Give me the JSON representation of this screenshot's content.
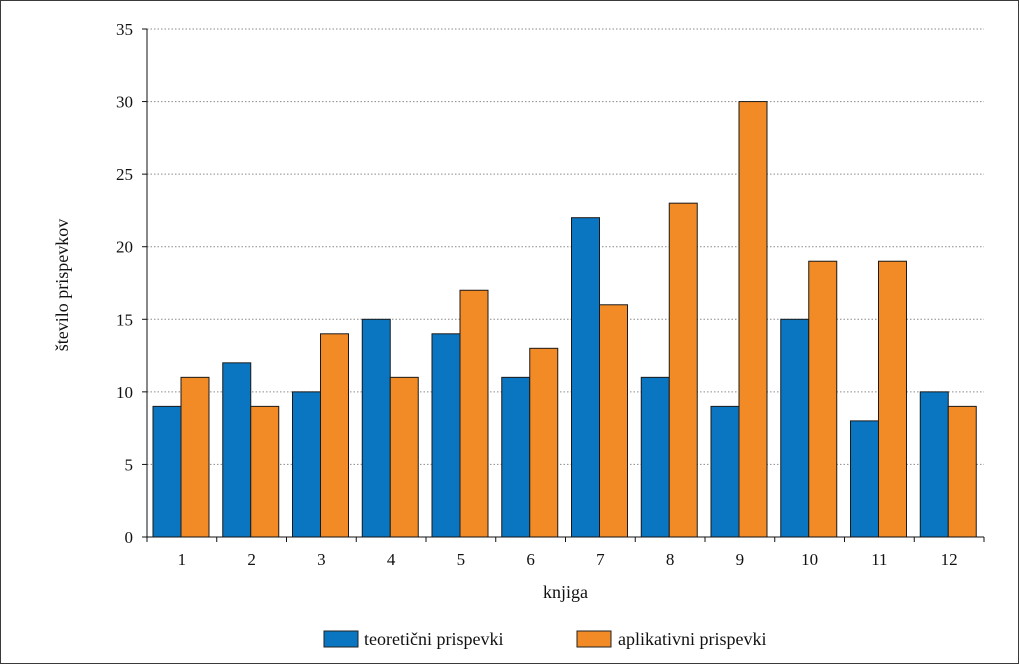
{
  "chart_data": {
    "type": "bar",
    "title": "",
    "xlabel": "knjiga",
    "ylabel": "število prispevkov",
    "categories": [
      "1",
      "2",
      "3",
      "4",
      "5",
      "6",
      "7",
      "8",
      "9",
      "10",
      "11",
      "12"
    ],
    "series": [
      {
        "name": "teoretični prispevki",
        "color": "#0a76c2",
        "values": [
          9,
          12,
          10,
          15,
          14,
          11,
          22,
          11,
          9,
          15,
          8,
          10
        ]
      },
      {
        "name": "aplikativni prispevki",
        "color": "#f28a25",
        "values": [
          11,
          9,
          14,
          11,
          17,
          13,
          16,
          23,
          30,
          19,
          19,
          9
        ]
      }
    ],
    "ylim": [
      0,
      35
    ],
    "yticks": [
      0,
      5,
      10,
      15,
      20,
      25,
      30,
      35
    ],
    "grid": true,
    "legend_position": "bottom"
  }
}
